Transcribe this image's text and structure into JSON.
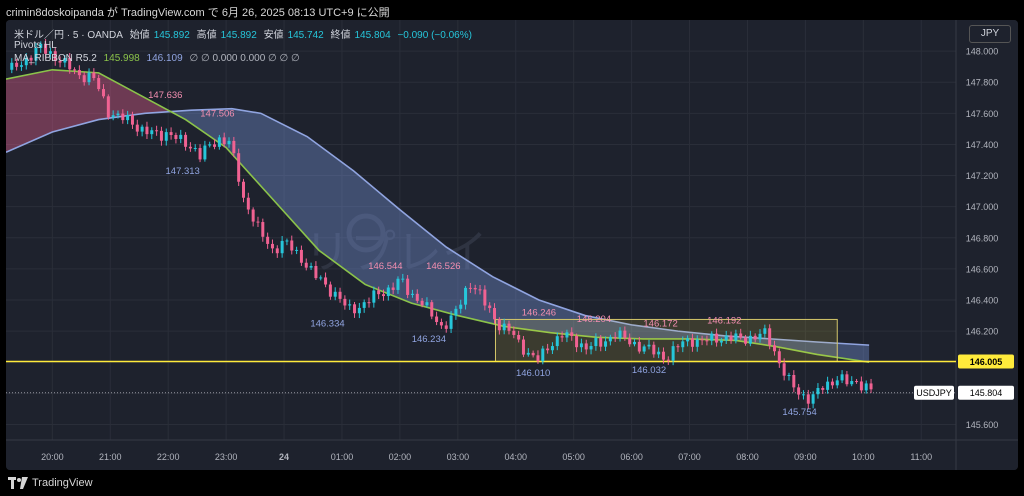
{
  "header": {
    "publish_line": "crimin8doskoipanda が TradingView.com で 6月 26, 2025 08:13 UTC+9 に公開"
  },
  "legend": {
    "symbol": "米ドル／円 · 5 · OANDA",
    "open_label": "始値",
    "open": "145.892",
    "high_label": "高値",
    "high": "145.892",
    "low_label": "安値",
    "low": "145.742",
    "close_label": "終値",
    "close": "145.804",
    "change": "−0.090 (−0.06%)",
    "indicator1": "Pivots HL",
    "indicator2": "MA_RIBBON R5.2",
    "ribbon_fast": "145.998",
    "ribbon_slow": "146.109",
    "ribbon_rest": "∅ ∅ 0.000 0.000 ∅ ∅ ∅"
  },
  "footer": {
    "brand": "TradingView"
  },
  "watermark": "リプレイ",
  "currency": "JPY",
  "colors": {
    "background": "#1e222d",
    "grid": "#2a2e39",
    "up": "#26c6da",
    "down": "#f06292",
    "ma_fast": "#8bc34a",
    "ma_slow": "#90a4e0",
    "level_line": "#ffeb3b",
    "pivot_high": "#f48fb1",
    "pivot_low": "#90a4e0"
  },
  "chart_data": {
    "type": "candlestick",
    "ylim": [
      145.5,
      148.2
    ],
    "y_ticks": [
      "148.000",
      "147.800",
      "147.600",
      "147.400",
      "147.200",
      "147.000",
      "146.800",
      "146.600",
      "146.400",
      "146.200",
      "146.000",
      "145.800",
      "145.600"
    ],
    "x_ticks": [
      "20:00",
      "21:00",
      "22:00",
      "23:00",
      "24",
      "01:00",
      "02:00",
      "03:00",
      "04:00",
      "05:00",
      "06:00",
      "07:00",
      "08:00",
      "09:00",
      "10:00",
      "11:00"
    ],
    "x_tick_hours": [
      20,
      21,
      22,
      23,
      24,
      25,
      26,
      27,
      28,
      29,
      30,
      31,
      32,
      33,
      34,
      35
    ],
    "x_range_hours": [
      19.2,
      35.6
    ],
    "ohlc_path": [
      [
        19.3,
        147.88
      ],
      [
        19.55,
        147.95
      ],
      [
        19.8,
        148.02
      ],
      [
        20.0,
        147.98
      ],
      [
        20.2,
        147.92
      ],
      [
        20.45,
        147.85
      ],
      [
        20.7,
        147.83
      ],
      [
        20.85,
        147.72
      ],
      [
        20.95,
        147.62
      ],
      [
        21.1,
        147.58
      ],
      [
        21.35,
        147.55
      ],
      [
        21.6,
        147.48
      ],
      [
        21.85,
        147.46
      ],
      [
        22.0,
        147.48
      ],
      [
        22.2,
        147.42
      ],
      [
        22.45,
        147.38
      ],
      [
        22.55,
        147.33
      ],
      [
        22.7,
        147.38
      ],
      [
        22.9,
        147.44
      ],
      [
        23.05,
        147.42
      ],
      [
        23.15,
        147.28
      ],
      [
        23.3,
        147.05
      ],
      [
        23.45,
        146.95
      ],
      [
        23.6,
        146.82
      ],
      [
        23.8,
        146.72
      ],
      [
        24.0,
        146.78
      ],
      [
        24.2,
        146.7
      ],
      [
        24.35,
        146.65
      ],
      [
        24.55,
        146.55
      ],
      [
        24.75,
        146.48
      ],
      [
        24.95,
        146.42
      ],
      [
        25.1,
        146.33
      ],
      [
        25.3,
        146.36
      ],
      [
        25.55,
        146.42
      ],
      [
        25.85,
        146.48
      ],
      [
        26.0,
        146.53
      ],
      [
        26.15,
        146.45
      ],
      [
        26.35,
        146.4
      ],
      [
        26.55,
        146.3
      ],
      [
        26.7,
        146.23
      ],
      [
        26.9,
        146.28
      ],
      [
        27.05,
        146.38
      ],
      [
        27.2,
        146.52
      ],
      [
        27.35,
        146.46
      ],
      [
        27.5,
        146.35
      ],
      [
        27.7,
        146.25
      ],
      [
        27.9,
        146.2
      ],
      [
        28.05,
        146.12
      ],
      [
        28.25,
        146.05
      ],
      [
        28.4,
        146.01
      ],
      [
        28.6,
        146.12
      ],
      [
        28.8,
        146.18
      ],
      [
        29.0,
        146.14
      ],
      [
        29.2,
        146.1
      ],
      [
        29.5,
        146.12
      ],
      [
        29.7,
        146.19
      ],
      [
        29.95,
        146.13
      ],
      [
        30.2,
        146.1
      ],
      [
        30.45,
        146.05
      ],
      [
        30.6,
        146.03
      ],
      [
        30.8,
        146.1
      ],
      [
        31.0,
        146.15
      ],
      [
        31.2,
        146.13
      ],
      [
        31.5,
        146.16
      ],
      [
        31.8,
        146.15
      ],
      [
        32.1,
        146.16
      ],
      [
        32.3,
        146.18
      ],
      [
        32.4,
        146.13
      ],
      [
        32.55,
        146.0
      ],
      [
        32.7,
        145.88
      ],
      [
        32.9,
        145.8
      ],
      [
        33.1,
        145.76
      ],
      [
        33.3,
        145.84
      ],
      [
        33.55,
        145.9
      ],
      [
        33.75,
        145.86
      ],
      [
        33.9,
        145.88
      ],
      [
        34.05,
        145.84
      ],
      [
        34.2,
        145.8
      ]
    ],
    "ma_fast": [
      [
        19.2,
        147.82
      ],
      [
        20.0,
        147.88
      ],
      [
        20.8,
        147.86
      ],
      [
        21.5,
        147.72
      ],
      [
        22.3,
        147.56
      ],
      [
        23.0,
        147.38
      ],
      [
        23.8,
        147.05
      ],
      [
        24.6,
        146.72
      ],
      [
        25.4,
        146.5
      ],
      [
        26.2,
        146.38
      ],
      [
        27.0,
        146.3
      ],
      [
        27.8,
        146.23
      ],
      [
        28.6,
        146.19
      ],
      [
        29.4,
        146.16
      ],
      [
        30.2,
        146.15
      ],
      [
        31.0,
        146.15
      ],
      [
        31.8,
        146.14
      ],
      [
        32.5,
        146.1
      ],
      [
        33.2,
        146.05
      ],
      [
        34.1,
        146.0
      ]
    ],
    "ma_slow": [
      [
        19.2,
        147.35
      ],
      [
        20.0,
        147.48
      ],
      [
        20.8,
        147.56
      ],
      [
        21.6,
        147.6
      ],
      [
        22.4,
        147.62
      ],
      [
        23.1,
        147.63
      ],
      [
        23.6,
        147.6
      ],
      [
        24.4,
        147.45
      ],
      [
        25.2,
        147.23
      ],
      [
        26.0,
        146.98
      ],
      [
        26.8,
        146.74
      ],
      [
        27.6,
        146.55
      ],
      [
        28.4,
        146.4
      ],
      [
        29.2,
        146.3
      ],
      [
        30.0,
        146.24
      ],
      [
        30.8,
        146.2
      ],
      [
        31.6,
        146.17
      ],
      [
        32.4,
        146.15
      ],
      [
        33.2,
        146.13
      ],
      [
        34.1,
        146.11
      ]
    ],
    "level_line": {
      "value": "146.005",
      "y": 146.005
    },
    "last_price": {
      "symbol": "USDJPY",
      "value": "145.804",
      "y": 145.804
    },
    "box": {
      "x0": 27.65,
      "x1": 33.55,
      "y0": 146.005,
      "y1": 146.275
    },
    "pivots": [
      {
        "label": "147.636",
        "x": 21.95,
        "y": 147.7,
        "kind": "high"
      },
      {
        "label": "147.506",
        "x": 22.85,
        "y": 147.58,
        "kind": "high"
      },
      {
        "label": "147.313",
        "x": 22.25,
        "y": 147.21,
        "kind": "low"
      },
      {
        "label": "146.544",
        "x": 25.75,
        "y": 146.6,
        "kind": "high"
      },
      {
        "label": "146.526",
        "x": 26.75,
        "y": 146.6,
        "kind": "high"
      },
      {
        "label": "146.334",
        "x": 24.75,
        "y": 146.23,
        "kind": "low"
      },
      {
        "label": "146.234",
        "x": 26.5,
        "y": 146.13,
        "kind": "low"
      },
      {
        "label": "146.246",
        "x": 28.4,
        "y": 146.3,
        "kind": "high"
      },
      {
        "label": "146.204",
        "x": 29.35,
        "y": 146.26,
        "kind": "high"
      },
      {
        "label": "146.172",
        "x": 30.5,
        "y": 146.23,
        "kind": "high"
      },
      {
        "label": "146.192",
        "x": 31.6,
        "y": 146.25,
        "kind": "high"
      },
      {
        "label": "146.010",
        "x": 28.3,
        "y": 145.91,
        "kind": "low"
      },
      {
        "label": "146.032",
        "x": 30.3,
        "y": 145.93,
        "kind": "low"
      },
      {
        "label": "145.754",
        "x": 32.9,
        "y": 145.66,
        "kind": "low"
      }
    ]
  }
}
